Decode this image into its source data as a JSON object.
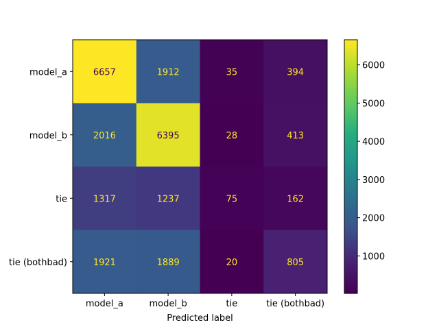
{
  "chart_data": {
    "type": "heatmap",
    "title": "",
    "xlabel": "Predicted label",
    "ylabel": "",
    "x_categories": [
      "model_a",
      "model_b",
      "tie",
      "tie (bothbad)"
    ],
    "y_categories": [
      "model_a",
      "model_b",
      "tie",
      "tie (bothbad)"
    ],
    "values": [
      [
        6657,
        1912,
        35,
        394
      ],
      [
        2016,
        6395,
        28,
        413
      ],
      [
        1317,
        1237,
        75,
        162
      ],
      [
        1921,
        1889,
        20,
        805
      ]
    ],
    "colormap": "viridis",
    "value_range": [
      20,
      6657
    ],
    "colorbar_ticks": [
      1000,
      2000,
      3000,
      4000,
      5000,
      6000
    ],
    "text_colors": {
      "on_dark": "#fde725",
      "on_light": "#440154"
    },
    "grid": false
  }
}
